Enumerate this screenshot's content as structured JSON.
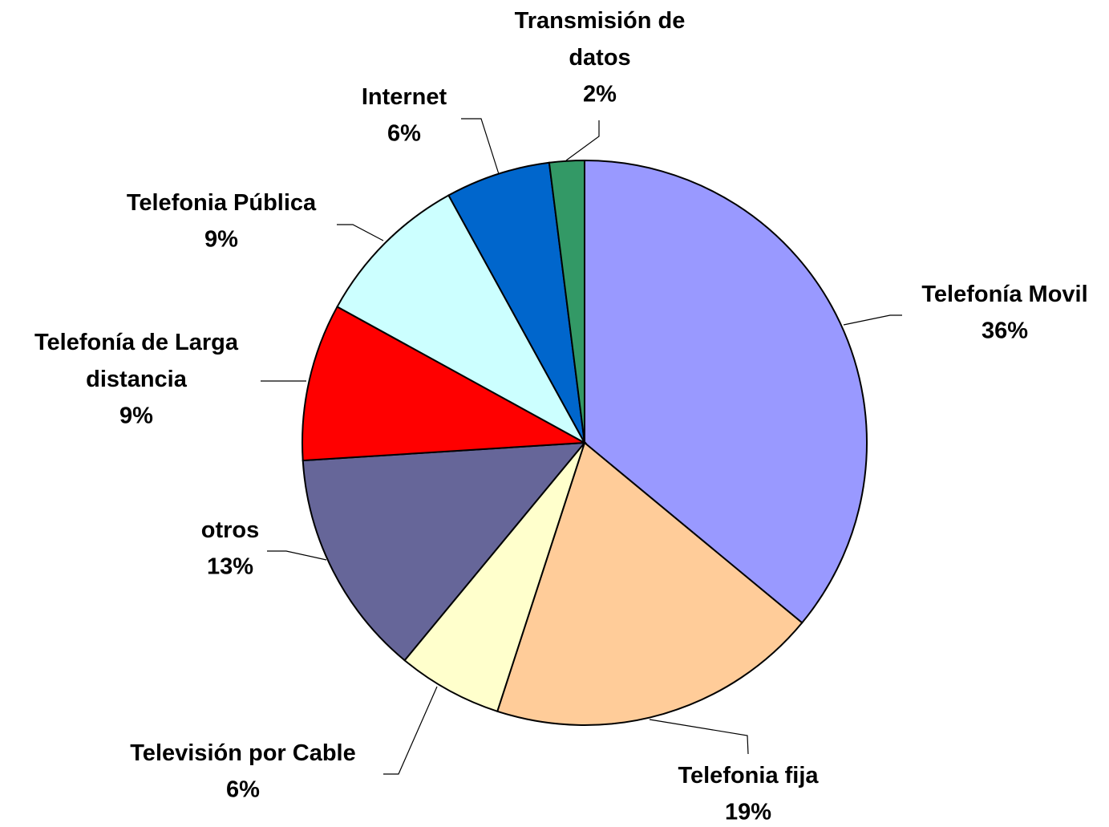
{
  "chart_data": {
    "type": "pie",
    "categories": [
      "Telefonía Movil",
      "Telefonia fija",
      "Televisión por Cable",
      "otros",
      "Telefonía de Larga distancia",
      "Telefonia Pública",
      "Internet",
      "Transmisión de datos"
    ],
    "values": [
      36,
      19,
      6,
      13,
      9,
      9,
      6,
      2
    ],
    "value_labels": [
      "36%",
      "19%",
      "6%",
      "13%",
      "9%",
      "9%",
      "6%",
      "2%"
    ],
    "colors": [
      "#9999ff",
      "#ffcc99",
      "#ffffcc",
      "#666699",
      "#ff0000",
      "#ccffff",
      "#0066cc",
      "#339966"
    ]
  }
}
